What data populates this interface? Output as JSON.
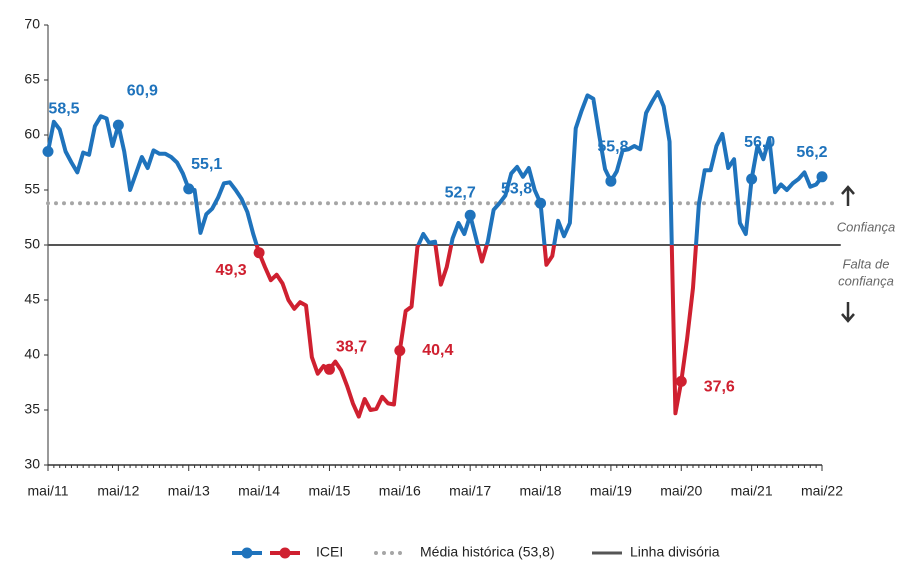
{
  "chart_data": {
    "type": "line",
    "categories": [
      "mai/11",
      null,
      null,
      null,
      null,
      null,
      null,
      null,
      null,
      null,
      null,
      null,
      "mai/12",
      null,
      null,
      null,
      null,
      null,
      null,
      null,
      null,
      null,
      null,
      null,
      "mai/13",
      null,
      null,
      null,
      null,
      null,
      null,
      null,
      null,
      null,
      null,
      null,
      "mai/14",
      null,
      null,
      null,
      null,
      null,
      null,
      null,
      null,
      null,
      null,
      null,
      "mai/15",
      null,
      null,
      null,
      null,
      null,
      null,
      null,
      null,
      null,
      null,
      null,
      "mai/16",
      null,
      null,
      null,
      null,
      null,
      null,
      null,
      null,
      null,
      null,
      null,
      "mai/17",
      null,
      null,
      null,
      null,
      null,
      null,
      null,
      null,
      null,
      null,
      null,
      "mai/18",
      null,
      null,
      null,
      null,
      null,
      null,
      null,
      null,
      null,
      null,
      null,
      "mai/19",
      null,
      null,
      null,
      null,
      null,
      null,
      null,
      null,
      null,
      null,
      null,
      "mai/20",
      null,
      null,
      null,
      null,
      null,
      null,
      null,
      null,
      null,
      null,
      null,
      "mai/21",
      null,
      null,
      null,
      null,
      null,
      null,
      null,
      null,
      null,
      null,
      null,
      "mai/22"
    ],
    "series": [
      {
        "name": "ICEI",
        "color": "#1f73bc",
        "color_below": "#cf2030",
        "values": [
          58.5,
          61.2,
          60.5,
          58.5,
          57.5,
          56.6,
          58.4,
          58.2,
          60.8,
          61.7,
          61.5,
          59.0,
          60.9,
          58.5,
          55.0,
          56.5,
          58.0,
          57.0,
          58.6,
          58.3,
          58.3,
          58.0,
          57.5,
          56.5,
          55.1,
          55.0,
          51.1,
          52.8,
          53.3,
          54.3,
          55.6,
          55.7,
          55.0,
          54.2,
          53.0,
          51.0,
          49.3,
          48.0,
          46.8,
          47.3,
          46.5,
          45.0,
          44.2,
          44.8,
          44.5,
          39.8,
          38.3,
          39.0,
          38.7,
          39.4,
          38.6,
          37.2,
          35.6,
          34.4,
          36.0,
          35.0,
          35.1,
          36.2,
          35.6,
          35.5,
          40.4,
          44.0,
          44.4,
          49.8,
          51.0,
          50.2,
          50.3,
          46.4,
          48.0,
          50.6,
          52.0,
          51.0,
          52.7,
          50.6,
          48.5,
          50.3,
          53.2,
          53.8,
          54.5,
          56.5,
          57.1,
          56.2,
          57.0,
          55.0,
          53.8,
          48.2,
          49.0,
          52.2,
          50.8,
          52.0,
          60.6,
          62.2,
          63.6,
          63.3,
          60.0,
          56.9,
          55.8,
          56.7,
          58.6,
          58.7,
          59.0,
          58.7,
          62.0,
          63.0,
          63.9,
          62.6,
          59.4,
          34.7,
          37.6,
          41.5,
          46.1,
          53.7,
          56.8,
          56.8,
          59.0,
          60.1,
          57.0,
          57.8,
          52.0,
          51.0,
          56.0,
          59.0,
          57.8,
          59.7,
          54.8,
          55.5,
          55.0,
          55.6,
          56.0,
          56.6,
          55.3,
          55.5,
          56.2
        ],
        "value_labels": [
          "58,5",
          null,
          null,
          null,
          null,
          null,
          null,
          null,
          null,
          null,
          null,
          null,
          "60,9",
          null,
          null,
          null,
          null,
          null,
          null,
          null,
          null,
          null,
          null,
          null,
          "55,1",
          null,
          null,
          null,
          null,
          null,
          null,
          null,
          null,
          null,
          null,
          null,
          "49,3",
          null,
          null,
          null,
          null,
          null,
          null,
          null,
          null,
          null,
          null,
          null,
          "38,7",
          null,
          null,
          null,
          null,
          null,
          null,
          null,
          null,
          null,
          null,
          null,
          "40,4",
          null,
          null,
          null,
          null,
          null,
          null,
          null,
          null,
          null,
          null,
          null,
          "52,7",
          null,
          null,
          null,
          null,
          null,
          null,
          null,
          null,
          null,
          null,
          null,
          "53,8",
          null,
          null,
          null,
          null,
          null,
          null,
          null,
          null,
          null,
          null,
          null,
          "55,8",
          null,
          null,
          null,
          null,
          null,
          null,
          null,
          null,
          null,
          null,
          null,
          "37,6",
          null,
          null,
          null,
          null,
          null,
          null,
          null,
          null,
          null,
          null,
          null,
          "56,0",
          null,
          null,
          null,
          null,
          null,
          null,
          null,
          null,
          null,
          null,
          null,
          "56,2"
        ]
      }
    ],
    "reference_lines": [
      {
        "name": "Linha divisória",
        "value": 50,
        "color": "#555555",
        "style": "solid"
      },
      {
        "name": "Média histórica (53,8)",
        "value": 53.8,
        "color": "#a6a6a6",
        "style": "dotted"
      }
    ],
    "annotations": {
      "above": "Confiança",
      "below": [
        "Falta de",
        "confiança"
      ]
    },
    "ylim": [
      30,
      70
    ],
    "yticks": [
      30,
      35,
      40,
      45,
      50,
      55,
      60,
      65,
      70
    ],
    "grid": false
  }
}
